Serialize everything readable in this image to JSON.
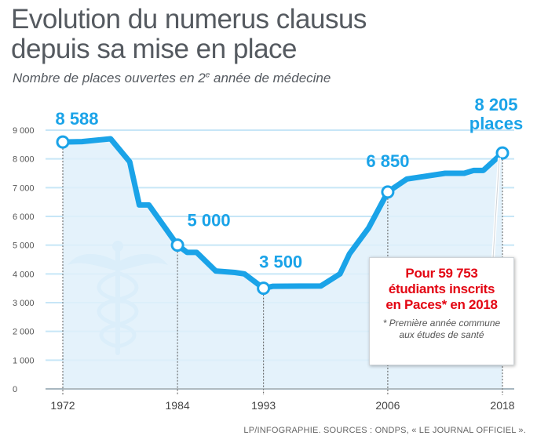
{
  "header": {
    "title_line1": "Evolution du numerus clausus",
    "title_line2": "depuis sa mise en place",
    "subtitle_pre": "Nombre de places ouvertes en 2",
    "subtitle_sup": "e",
    "subtitle_post": " année de médecine"
  },
  "chart_data": {
    "type": "line",
    "title": "Evolution du numerus clausus depuis sa mise en place",
    "subtitle": "Nombre de places ouvertes en 2e année de médecine",
    "xlabel": "",
    "ylabel": "",
    "x_range": [
      1972,
      2018
    ],
    "ylim": [
      0,
      9000
    ],
    "y_ticks": [
      0,
      1000,
      2000,
      3000,
      4000,
      5000,
      6000,
      7000,
      8000,
      9000
    ],
    "y_tick_labels": [
      "0",
      "1 000",
      "2 000",
      "3 000",
      "4 000",
      "5 000",
      "6 000",
      "7 000",
      "8 000",
      "9 000"
    ],
    "x_ticks": [
      1972,
      1984,
      1993,
      2006,
      2018
    ],
    "x_tick_labels": [
      "1972",
      "1984",
      "1993",
      "2006",
      "2018"
    ],
    "grid": true,
    "series": [
      {
        "name": "Numerus clausus",
        "points": [
          {
            "x": 1972,
            "y": 8588
          },
          {
            "x": 1974,
            "y": 8600
          },
          {
            "x": 1977,
            "y": 8700
          },
          {
            "x": 1979,
            "y": 7900
          },
          {
            "x": 1980,
            "y": 6400
          },
          {
            "x": 1981,
            "y": 6400
          },
          {
            "x": 1984,
            "y": 5000
          },
          {
            "x": 1985,
            "y": 4750
          },
          {
            "x": 1986,
            "y": 4750
          },
          {
            "x": 1988,
            "y": 4100
          },
          {
            "x": 1990,
            "y": 4050
          },
          {
            "x": 1991,
            "y": 4000
          },
          {
            "x": 1993,
            "y": 3500
          },
          {
            "x": 1994,
            "y": 3570
          },
          {
            "x": 1999,
            "y": 3580
          },
          {
            "x": 2001,
            "y": 4000
          },
          {
            "x": 2002,
            "y": 4700
          },
          {
            "x": 2004,
            "y": 5600
          },
          {
            "x": 2006,
            "y": 6850
          },
          {
            "x": 2008,
            "y": 7300
          },
          {
            "x": 2010,
            "y": 7400
          },
          {
            "x": 2012,
            "y": 7500
          },
          {
            "x": 2014,
            "y": 7500
          },
          {
            "x": 2015,
            "y": 7600
          },
          {
            "x": 2016,
            "y": 7600
          },
          {
            "x": 2018,
            "y": 8205
          }
        ]
      }
    ],
    "annotations": [
      {
        "x": 1972,
        "y": 8588,
        "label": "8 588"
      },
      {
        "x": 1984,
        "y": 5000,
        "label": "5 000"
      },
      {
        "x": 1993,
        "y": 3500,
        "label": "3 500"
      },
      {
        "x": 2006,
        "y": 6850,
        "label": "6 850"
      },
      {
        "x": 2018,
        "y": 8205,
        "label": "8 205",
        "label2": "places"
      }
    ],
    "colors": {
      "line": "#1aa3e8",
      "fill": "#dff0fa",
      "grid": "#c7e6f7",
      "label": "#1aa3e8",
      "caduceus": "#bfe3f7"
    }
  },
  "note": {
    "line1": "Pour 59 753",
    "line2": "étudiants inscrits",
    "line3": "en Paces* en 2018",
    "foot1": "* Première année commune",
    "foot2": "aux études de santé",
    "color": "#e30613"
  },
  "source": "LP/INFOGRAPHIE. SOURCES : ONDPS, « LE JOURNAL OFFICIEL »."
}
